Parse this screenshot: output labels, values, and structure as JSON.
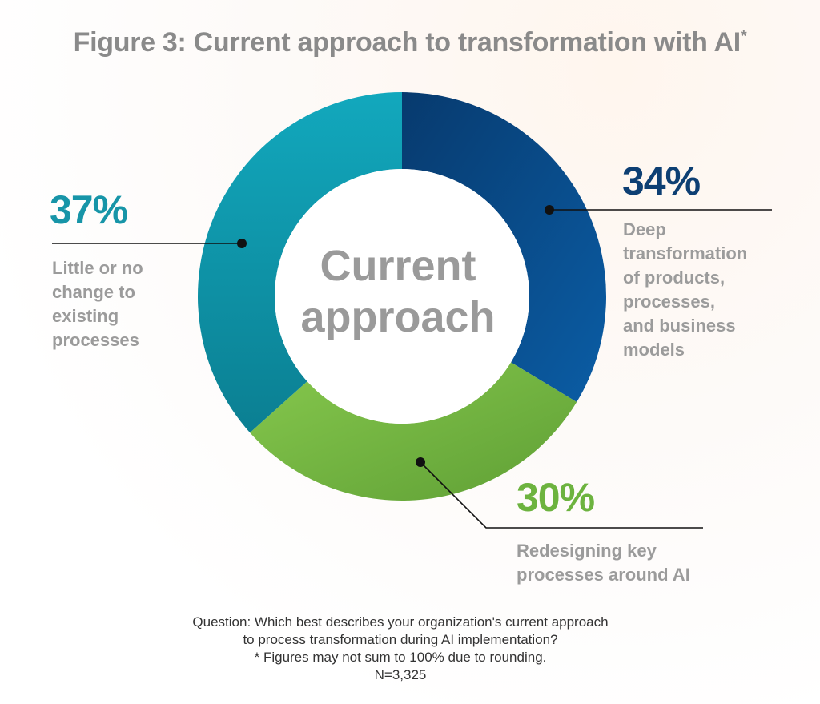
{
  "title": "Figure 3: Current approach to transformation with AI",
  "title_mark": "*",
  "chart_data": {
    "type": "pie",
    "donut": true,
    "center_label_line1": "Current",
    "center_label_line2": "approach",
    "slices": [
      {
        "label": "Deep transformation of products, processes, and business models",
        "label_lines": [
          "Deep",
          "transformation",
          "of products,",
          "processes,",
          "and business",
          "models"
        ],
        "value": 34,
        "value_label": "34%",
        "color": "#0a4b86"
      },
      {
        "label": "Redesigning key processes around AI",
        "label_lines": [
          "Redesigning key",
          "processes around AI"
        ],
        "value": 30,
        "value_label": "30%",
        "color": "#79bd45"
      },
      {
        "label": "Little or no change to existing processes",
        "label_lines": [
          "Little or no",
          "change to",
          "existing",
          "processes"
        ],
        "value": 37,
        "value_label": "37%",
        "color": "#0e9bb2"
      }
    ],
    "slice_order_note": "clockwise from top",
    "legend": "none"
  },
  "footnote": {
    "question_line1": "Question: Which best describes your organization's current approach",
    "question_line2": "to process transformation during AI implementation?",
    "rounding_note": "* Figures may not sum to 100% due to rounding.",
    "sample": "N=3,325"
  },
  "colors": {
    "title": "#8a8a8a",
    "deep": "#0a4b86",
    "deep_text": "#0d3f73",
    "redesign": "#79bd45",
    "redesign_text": "#6db33f",
    "little": "#0e9bb2",
    "little_text": "#1795a8"
  }
}
